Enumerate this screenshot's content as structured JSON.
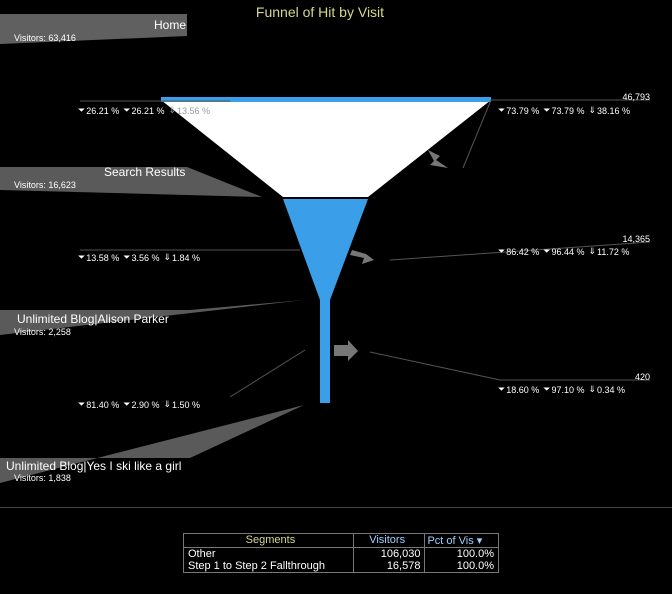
{
  "title": "Funnel of Hit by Visit",
  "steps": [
    {
      "name": "Home",
      "visitors_label": "Visitors: 63,416"
    },
    {
      "name": "Search Results",
      "visitors_label": "Visitors: 16,623"
    },
    {
      "name": "Unlimited Blog|Alison Parker",
      "visitors_label": "Visitors: 2,258"
    },
    {
      "name": "Unlimited Blog|Yes I ski like a girl",
      "visitors_label": "Visitors: 1,838"
    }
  ],
  "left_pct_rows": [
    [
      "26.21 %",
      "26.21 %",
      "13.56 %"
    ],
    [
      "13.58 %",
      "3.56 %",
      "1.84 %"
    ],
    [
      "81.40 %",
      "2.90 %",
      "1.50 %"
    ]
  ],
  "right_values": [
    {
      "visitors": "46,793",
      "pcts": [
        "73.79 %",
        "73.79 %",
        "38.16 %"
      ]
    },
    {
      "visitors": "14,365",
      "pcts": [
        "86.42 %",
        "96.44 %",
        "11.72 %"
      ]
    },
    {
      "visitors": "420",
      "pcts": [
        "18.60 %",
        "97.10 %",
        "0.34 %"
      ]
    }
  ],
  "colors": {
    "funnel_top": "#ffffff",
    "funnel_blue": "#3a9ee8",
    "title": "#d6d98a"
  },
  "table": {
    "headers": [
      "Segments",
      "Visitors",
      "Pct of Vis"
    ],
    "rows": [
      [
        "Other",
        "106,030",
        "100.0%"
      ],
      [
        "Step 1 to Step 2 Fallthrough",
        "16,578",
        "100.0%"
      ]
    ]
  }
}
